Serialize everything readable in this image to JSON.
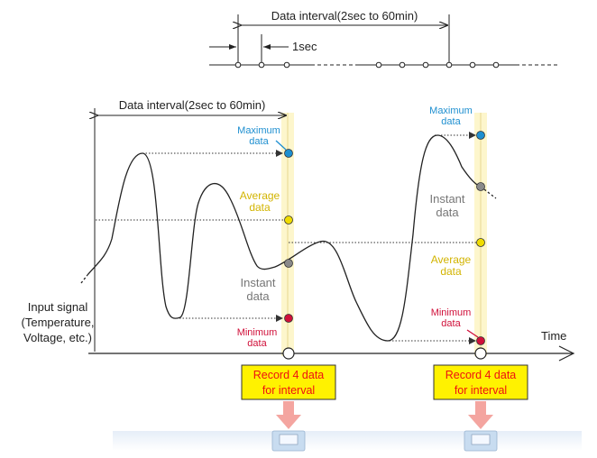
{
  "top_interval_label": "Data interval(2sec to 60min)",
  "one_sec_label": "1sec",
  "main_interval_label": "Data interval(2sec to 60min)",
  "input_signal": {
    "line1": "Input signal",
    "line2": "(Temperature,",
    "line3": "Voltage, etc.)"
  },
  "time_label": "Time",
  "interval1": {
    "max": [
      "Maximum",
      "data"
    ],
    "avg": [
      "Average",
      "data"
    ],
    "instant": [
      "Instant",
      "data"
    ],
    "min": [
      "Minimum",
      "data"
    ],
    "record": [
      "Record 4 data",
      "for interval"
    ]
  },
  "interval2": {
    "max": [
      "Maximum",
      "data"
    ],
    "instant": [
      "Instant",
      "data"
    ],
    "avg": [
      "Average",
      "data"
    ],
    "min": [
      "Minimum",
      "data"
    ],
    "record": [
      "Record 4 data",
      "for interval"
    ]
  },
  "colors": {
    "max": "#1e8fd0",
    "avg": "#f0dc00",
    "instant": "#8a8a8a",
    "min": "#d0103a",
    "record_bg": "#fff200",
    "record_text": "#ee1111",
    "band": "#fdf6cc",
    "arrow_pink": "#f4a5a0"
  }
}
